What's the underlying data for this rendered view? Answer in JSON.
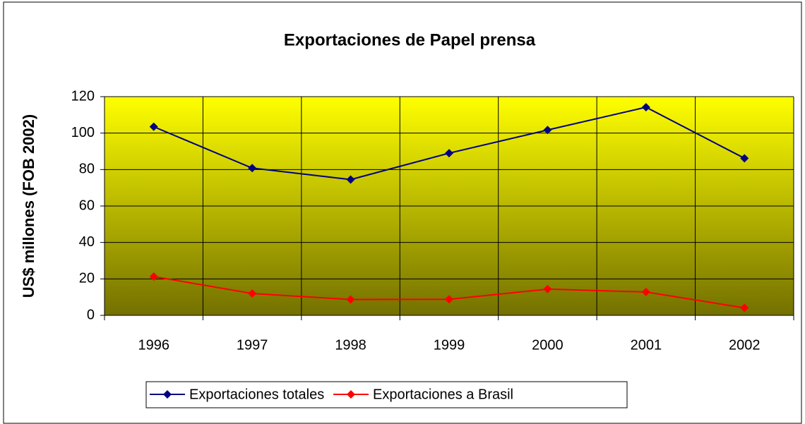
{
  "chart_data": {
    "type": "line",
    "title": "Exportaciones de Papel prensa",
    "y_label": "US$ millones (FOB 2002)",
    "categories": [
      "1996",
      "1997",
      "1998",
      "1999",
      "2000",
      "2001",
      "2002"
    ],
    "series": [
      {
        "name": "Exportaciones totales",
        "color": "#000080",
        "values": [
          103.5,
          80.8,
          74.5,
          89,
          101.7,
          114.2,
          86.2
        ]
      },
      {
        "name": "Exportaciones a Brasil",
        "color": "#ff0000",
        "values": [
          21.3,
          12,
          8.7,
          8.8,
          14.4,
          12.8,
          4.1
        ]
      }
    ],
    "ylim": [
      0,
      120
    ],
    "yticks": [
      0,
      20,
      40,
      60,
      80,
      100,
      120
    ],
    "grid": true,
    "legend": "bottom"
  }
}
